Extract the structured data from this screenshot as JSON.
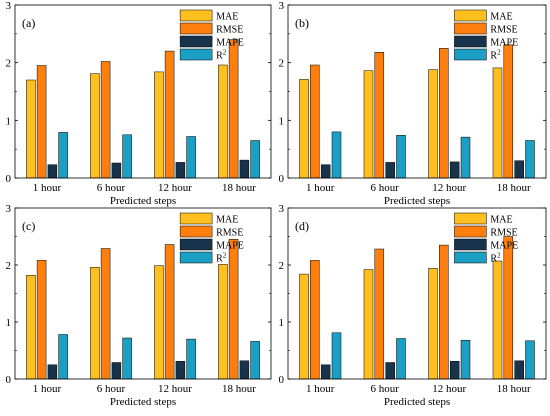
{
  "colors": {
    "MAE": "#FFBF1E",
    "RMSE": "#FF7F0E",
    "MAPE": "#17344C",
    "R2": "#1B9FC4"
  },
  "legend_labels": [
    "MAE",
    "RMSE",
    "MAPE",
    "R"
  ],
  "legend_superscript": "2",
  "chart_data": [
    {
      "type": "bar",
      "panel_label": "(a)",
      "categories": [
        "1 hour",
        "6 hour",
        "12 hour",
        "18 hour"
      ],
      "xlabel": "Predicted steps",
      "ylim": [
        0,
        3
      ],
      "yticks": [
        "0",
        "1",
        "2",
        "3"
      ],
      "legend_position": "top-right",
      "series": [
        {
          "name": "MAE",
          "values": [
            1.7,
            1.81,
            1.84,
            1.96
          ]
        },
        {
          "name": "RMSE",
          "values": [
            1.95,
            2.02,
            2.2,
            2.4
          ]
        },
        {
          "name": "MAPE",
          "values": [
            0.23,
            0.26,
            0.27,
            0.31
          ]
        },
        {
          "name": "R2",
          "values": [
            0.79,
            0.75,
            0.72,
            0.65
          ]
        }
      ]
    },
    {
      "type": "bar",
      "panel_label": "(b)",
      "categories": [
        "1 hour",
        "6 hour",
        "12 hour",
        "18 hour"
      ],
      "xlabel": "Predicted steps",
      "ylim": [
        0,
        3
      ],
      "yticks": [
        "0",
        "1",
        "2",
        "3"
      ],
      "legend_position": "top-right",
      "series": [
        {
          "name": "MAE",
          "values": [
            1.71,
            1.86,
            1.88,
            1.91
          ]
        },
        {
          "name": "RMSE",
          "values": [
            1.96,
            2.18,
            2.25,
            2.31
          ]
        },
        {
          "name": "MAPE",
          "values": [
            0.23,
            0.27,
            0.28,
            0.3
          ]
        },
        {
          "name": "R2",
          "values": [
            0.8,
            0.74,
            0.71,
            0.65
          ]
        }
      ]
    },
    {
      "type": "bar",
      "panel_label": "(c)",
      "categories": [
        "1 hour",
        "6 hour",
        "12 hour",
        "18 hour"
      ],
      "xlabel": "Predicted steps",
      "ylim": [
        0,
        3
      ],
      "yticks": [
        "0",
        "1",
        "2",
        "3"
      ],
      "legend_position": "top-right",
      "series": [
        {
          "name": "MAE",
          "values": [
            1.82,
            1.96,
            1.99,
            2.01
          ]
        },
        {
          "name": "RMSE",
          "values": [
            2.08,
            2.29,
            2.36,
            2.45
          ]
        },
        {
          "name": "MAPE",
          "values": [
            0.25,
            0.29,
            0.31,
            0.32
          ]
        },
        {
          "name": "R2",
          "values": [
            0.78,
            0.72,
            0.7,
            0.66
          ]
        }
      ]
    },
    {
      "type": "bar",
      "panel_label": "(d)",
      "categories": [
        "1 hour",
        "6 hour",
        "12 hour",
        "18 hour"
      ],
      "xlabel": "Predicted steps",
      "ylim": [
        0,
        3
      ],
      "yticks": [
        "0",
        "1",
        "2",
        "3"
      ],
      "legend_position": "top-right",
      "series": [
        {
          "name": "MAE",
          "values": [
            1.84,
            1.92,
            1.94,
            2.07
          ]
        },
        {
          "name": "RMSE",
          "values": [
            2.08,
            2.28,
            2.35,
            2.5
          ]
        },
        {
          "name": "MAPE",
          "values": [
            0.25,
            0.29,
            0.31,
            0.32
          ]
        },
        {
          "name": "R2",
          "values": [
            0.81,
            0.71,
            0.68,
            0.67
          ]
        }
      ]
    }
  ]
}
